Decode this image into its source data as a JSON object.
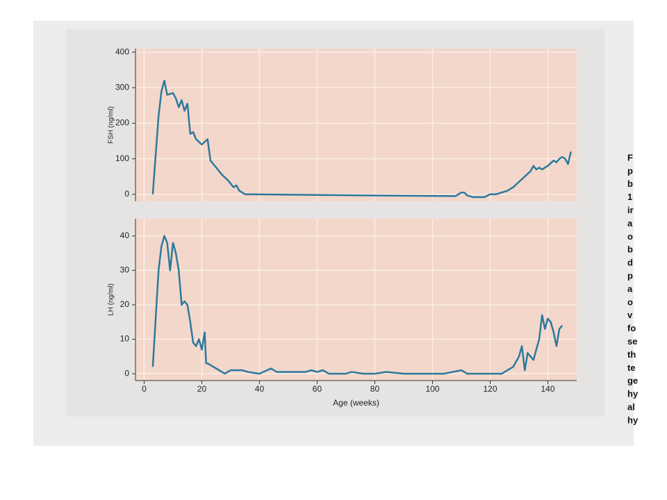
{
  "chart_data": [
    {
      "type": "line",
      "ylabel": "FSH (ng/ml)",
      "xlim": [
        -3,
        150
      ],
      "ylim": [
        -20,
        410
      ],
      "yticks": [
        0,
        100,
        200,
        300,
        400
      ],
      "grid": true,
      "series": [
        {
          "name": "FSH",
          "color": "#2b7a9c",
          "x": [
            3,
            5,
            6,
            7,
            8,
            10,
            11,
            12,
            13,
            14,
            15,
            16,
            17,
            18,
            20,
            22,
            23,
            25,
            27,
            29,
            30,
            31,
            32,
            33,
            35,
            60,
            90,
            108,
            110,
            111,
            112,
            114,
            118,
            120,
            122,
            124,
            126,
            128,
            130,
            132,
            134,
            135,
            136,
            137,
            138,
            140,
            142,
            143,
            144,
            145,
            146,
            147,
            148
          ],
          "values": [
            0,
            220,
            290,
            320,
            280,
            285,
            270,
            245,
            265,
            235,
            255,
            170,
            175,
            155,
            140,
            155,
            95,
            75,
            55,
            40,
            30,
            20,
            25,
            10,
            0,
            -2,
            -4,
            -5,
            5,
            5,
            -3,
            -8,
            -8,
            0,
            0,
            5,
            10,
            20,
            35,
            50,
            65,
            80,
            70,
            75,
            70,
            80,
            95,
            90,
            100,
            105,
            100,
            85,
            120
          ]
        }
      ]
    },
    {
      "type": "line",
      "ylabel": "LH (ng/ml)",
      "xlabel": "Age (weeks)",
      "xlim": [
        -3,
        150
      ],
      "ylim": [
        -2,
        45
      ],
      "xticks": [
        0,
        20,
        40,
        60,
        80,
        100,
        120,
        140
      ],
      "yticks": [
        0,
        10,
        20,
        30,
        40
      ],
      "grid": true,
      "series": [
        {
          "name": "LH",
          "color": "#2b7a9c",
          "x": [
            3,
            5,
            6,
            7,
            8,
            9,
            10,
            11,
            12,
            13,
            14,
            15,
            16,
            17,
            18,
            19,
            20,
            21,
            21.5,
            22,
            24,
            26,
            28,
            30,
            34,
            36,
            40,
            44,
            46,
            50,
            56,
            58,
            60,
            62,
            64,
            70,
            72,
            76,
            80,
            84,
            90,
            100,
            104,
            110,
            112,
            120,
            124,
            126,
            128,
            130,
            131,
            132,
            133,
            134,
            135,
            137,
            138,
            139,
            140,
            141,
            142,
            143,
            144,
            145
          ],
          "values": [
            2,
            30,
            37,
            40,
            38,
            30,
            38,
            35,
            30,
            20,
            21,
            20,
            15,
            9,
            8,
            10,
            7,
            12,
            3,
            3,
            2,
            1,
            0,
            1,
            1,
            0.5,
            0,
            1.5,
            0.5,
            0.5,
            0.5,
            1,
            0.5,
            1,
            0,
            0,
            0.5,
            0,
            0,
            0.5,
            0,
            0,
            0,
            1,
            0,
            0,
            0,
            1,
            2,
            5,
            8,
            1,
            6,
            5,
            4,
            10,
            17,
            13,
            16,
            15,
            12,
            8,
            13,
            14
          ]
        }
      ]
    }
  ],
  "side_text": [
    "F",
    "p",
    "b",
    "1",
    "ir",
    "a",
    "o",
    "b",
    "d",
    "p",
    "a",
    "o",
    "v",
    "fo",
    "se",
    "th",
    "te",
    "ge",
    "hy",
    "al",
    "hy"
  ]
}
